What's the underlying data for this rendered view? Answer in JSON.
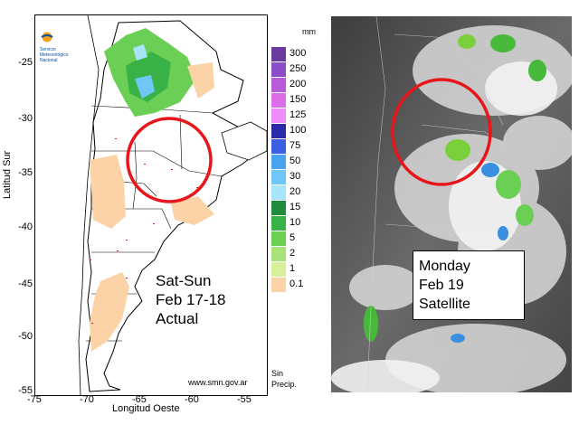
{
  "map": {
    "y_ticks": [
      "-25",
      "-30",
      "-35",
      "-40",
      "-45",
      "-50",
      "-55"
    ],
    "x_ticks": [
      "-75",
      "-70",
      "-65",
      "-60",
      "-55"
    ],
    "ylabel": "Latitud Sur",
    "xlabel": "Longitud Oeste",
    "logo_text": [
      "Servicio",
      "Meteorológico",
      "Nacional"
    ],
    "caption": [
      "Sat-Sun",
      "Feb 17-18",
      "Actual"
    ],
    "credit": "www.smn.gov.ar",
    "legend": {
      "unit": "mm",
      "items": [
        {
          "label": "300",
          "color": "#6a3aa0"
        },
        {
          "label": "250",
          "color": "#8d4cc8"
        },
        {
          "label": "200",
          "color": "#b75bd8"
        },
        {
          "label": "150",
          "color": "#d96ee8"
        },
        {
          "label": "125",
          "color": "#f08cf8"
        },
        {
          "label": "100",
          "color": "#2a2aa8"
        },
        {
          "label": "75",
          "color": "#3b5fe0"
        },
        {
          "label": "50",
          "color": "#4aa3f0"
        },
        {
          "label": "30",
          "color": "#6fc7f7"
        },
        {
          "label": "20",
          "color": "#a8e4fb"
        },
        {
          "label": "15",
          "color": "#1e8c3a"
        },
        {
          "label": "10",
          "color": "#38b246"
        },
        {
          "label": "5",
          "color": "#6ccf55"
        },
        {
          "label": "2",
          "color": "#a8e37a"
        },
        {
          "label": "1",
          "color": "#d8f09c"
        },
        {
          "label": "0.1",
          "color": "#fbd3a6"
        }
      ],
      "no_precip": [
        "Sin",
        "Precip."
      ]
    }
  },
  "satellite": {
    "caption": [
      "Monday",
      "Feb 19",
      "Satellite"
    ]
  },
  "highlight_color": "#e8151b"
}
